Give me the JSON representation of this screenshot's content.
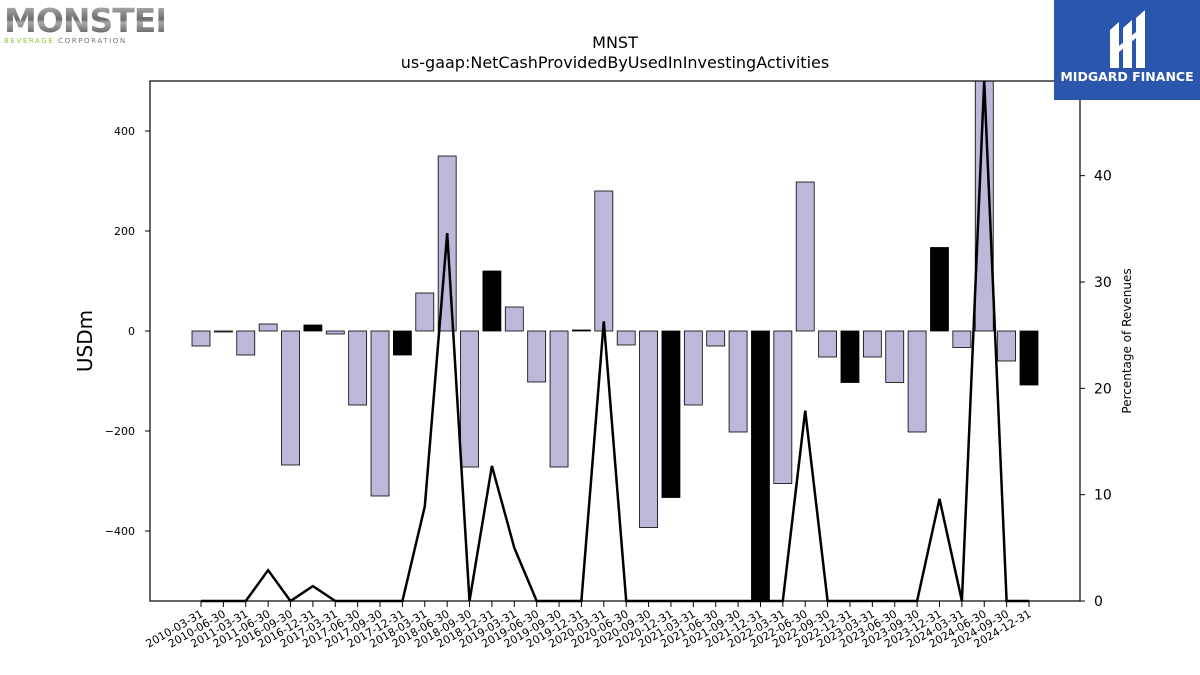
{
  "chart_data": {
    "type": "bar",
    "title": "MNST",
    "subtitle": "us-gaap:NetCashProvidedByUsedInInvestingActivities",
    "ylabel": "USDm",
    "ylabel_right": "Percentage of Revenues",
    "ylim": [
      -540,
      500
    ],
    "ylim_right": [
      0,
      48.9
    ],
    "yticks": [
      -400,
      -200,
      0,
      200,
      400
    ],
    "yticks_right": [
      0,
      10,
      20,
      30,
      40
    ],
    "grid": false,
    "categories": [
      "2010-03-31",
      "2010-06-30",
      "2011-03-31",
      "2011-06-30",
      "2016-09-30",
      "2016-12-31",
      "2017-03-31",
      "2017-06-30",
      "2017-09-30",
      "2017-12-31",
      "2018-03-31",
      "2018-06-30",
      "2018-09-30",
      "2018-12-31",
      "2019-03-31",
      "2019-06-30",
      "2019-09-30",
      "2019-12-31",
      "2020-03-31",
      "2020-06-30",
      "2020-09-30",
      "2020-12-31",
      "2021-03-31",
      "2021-06-30",
      "2021-09-30",
      "2021-12-31",
      "2022-03-31",
      "2022-06-30",
      "2022-09-30",
      "2022-12-31",
      "2023-03-31",
      "2023-06-30",
      "2023-09-30",
      "2023-12-31",
      "2024-03-31",
      "2024-06-30",
      "2024-09-30",
      "2024-12-31"
    ],
    "series": [
      {
        "kind": "bar",
        "axis": "left",
        "values": [
          -30,
          -2,
          -48,
          14,
          -268,
          12,
          -6,
          -148,
          -330,
          -48,
          76,
          350,
          -272,
          120,
          48,
          -102,
          -272,
          2,
          280,
          -28,
          -393,
          -333,
          -148,
          -30,
          -202,
          -540,
          -305,
          298,
          -52,
          -103,
          -52,
          -103,
          -202,
          167,
          -33,
          500,
          -60,
          -108
        ],
        "highlight": [
          false,
          false,
          false,
          false,
          false,
          true,
          false,
          false,
          false,
          true,
          false,
          false,
          false,
          true,
          false,
          false,
          false,
          true,
          false,
          false,
          false,
          true,
          false,
          false,
          false,
          true,
          false,
          false,
          false,
          true,
          false,
          false,
          false,
          true,
          false,
          false,
          false,
          true
        ]
      },
      {
        "kind": "line",
        "axis": "right",
        "values": [
          0,
          0,
          0,
          2.9,
          0,
          1.4,
          0,
          0,
          0,
          0,
          8.9,
          34.6,
          0,
          12.7,
          5.0,
          0,
          0,
          0,
          26.3,
          0,
          0,
          0,
          0,
          0,
          0,
          0,
          0,
          17.9,
          0,
          0,
          0,
          0,
          0,
          9.6,
          0,
          48.9,
          0,
          0
        ]
      }
    ],
    "colors": {
      "bar": "#bcb8da",
      "bar_highlight": "#000000",
      "line": "#000000"
    }
  },
  "logos": {
    "left": {
      "name": "MONSTER",
      "sub_green": "BEVERAGE",
      "sub_gray": "CORPORATION"
    },
    "right": {
      "name": "MIDGARD FINANCE",
      "icon": "midgard-mark-icon"
    }
  }
}
